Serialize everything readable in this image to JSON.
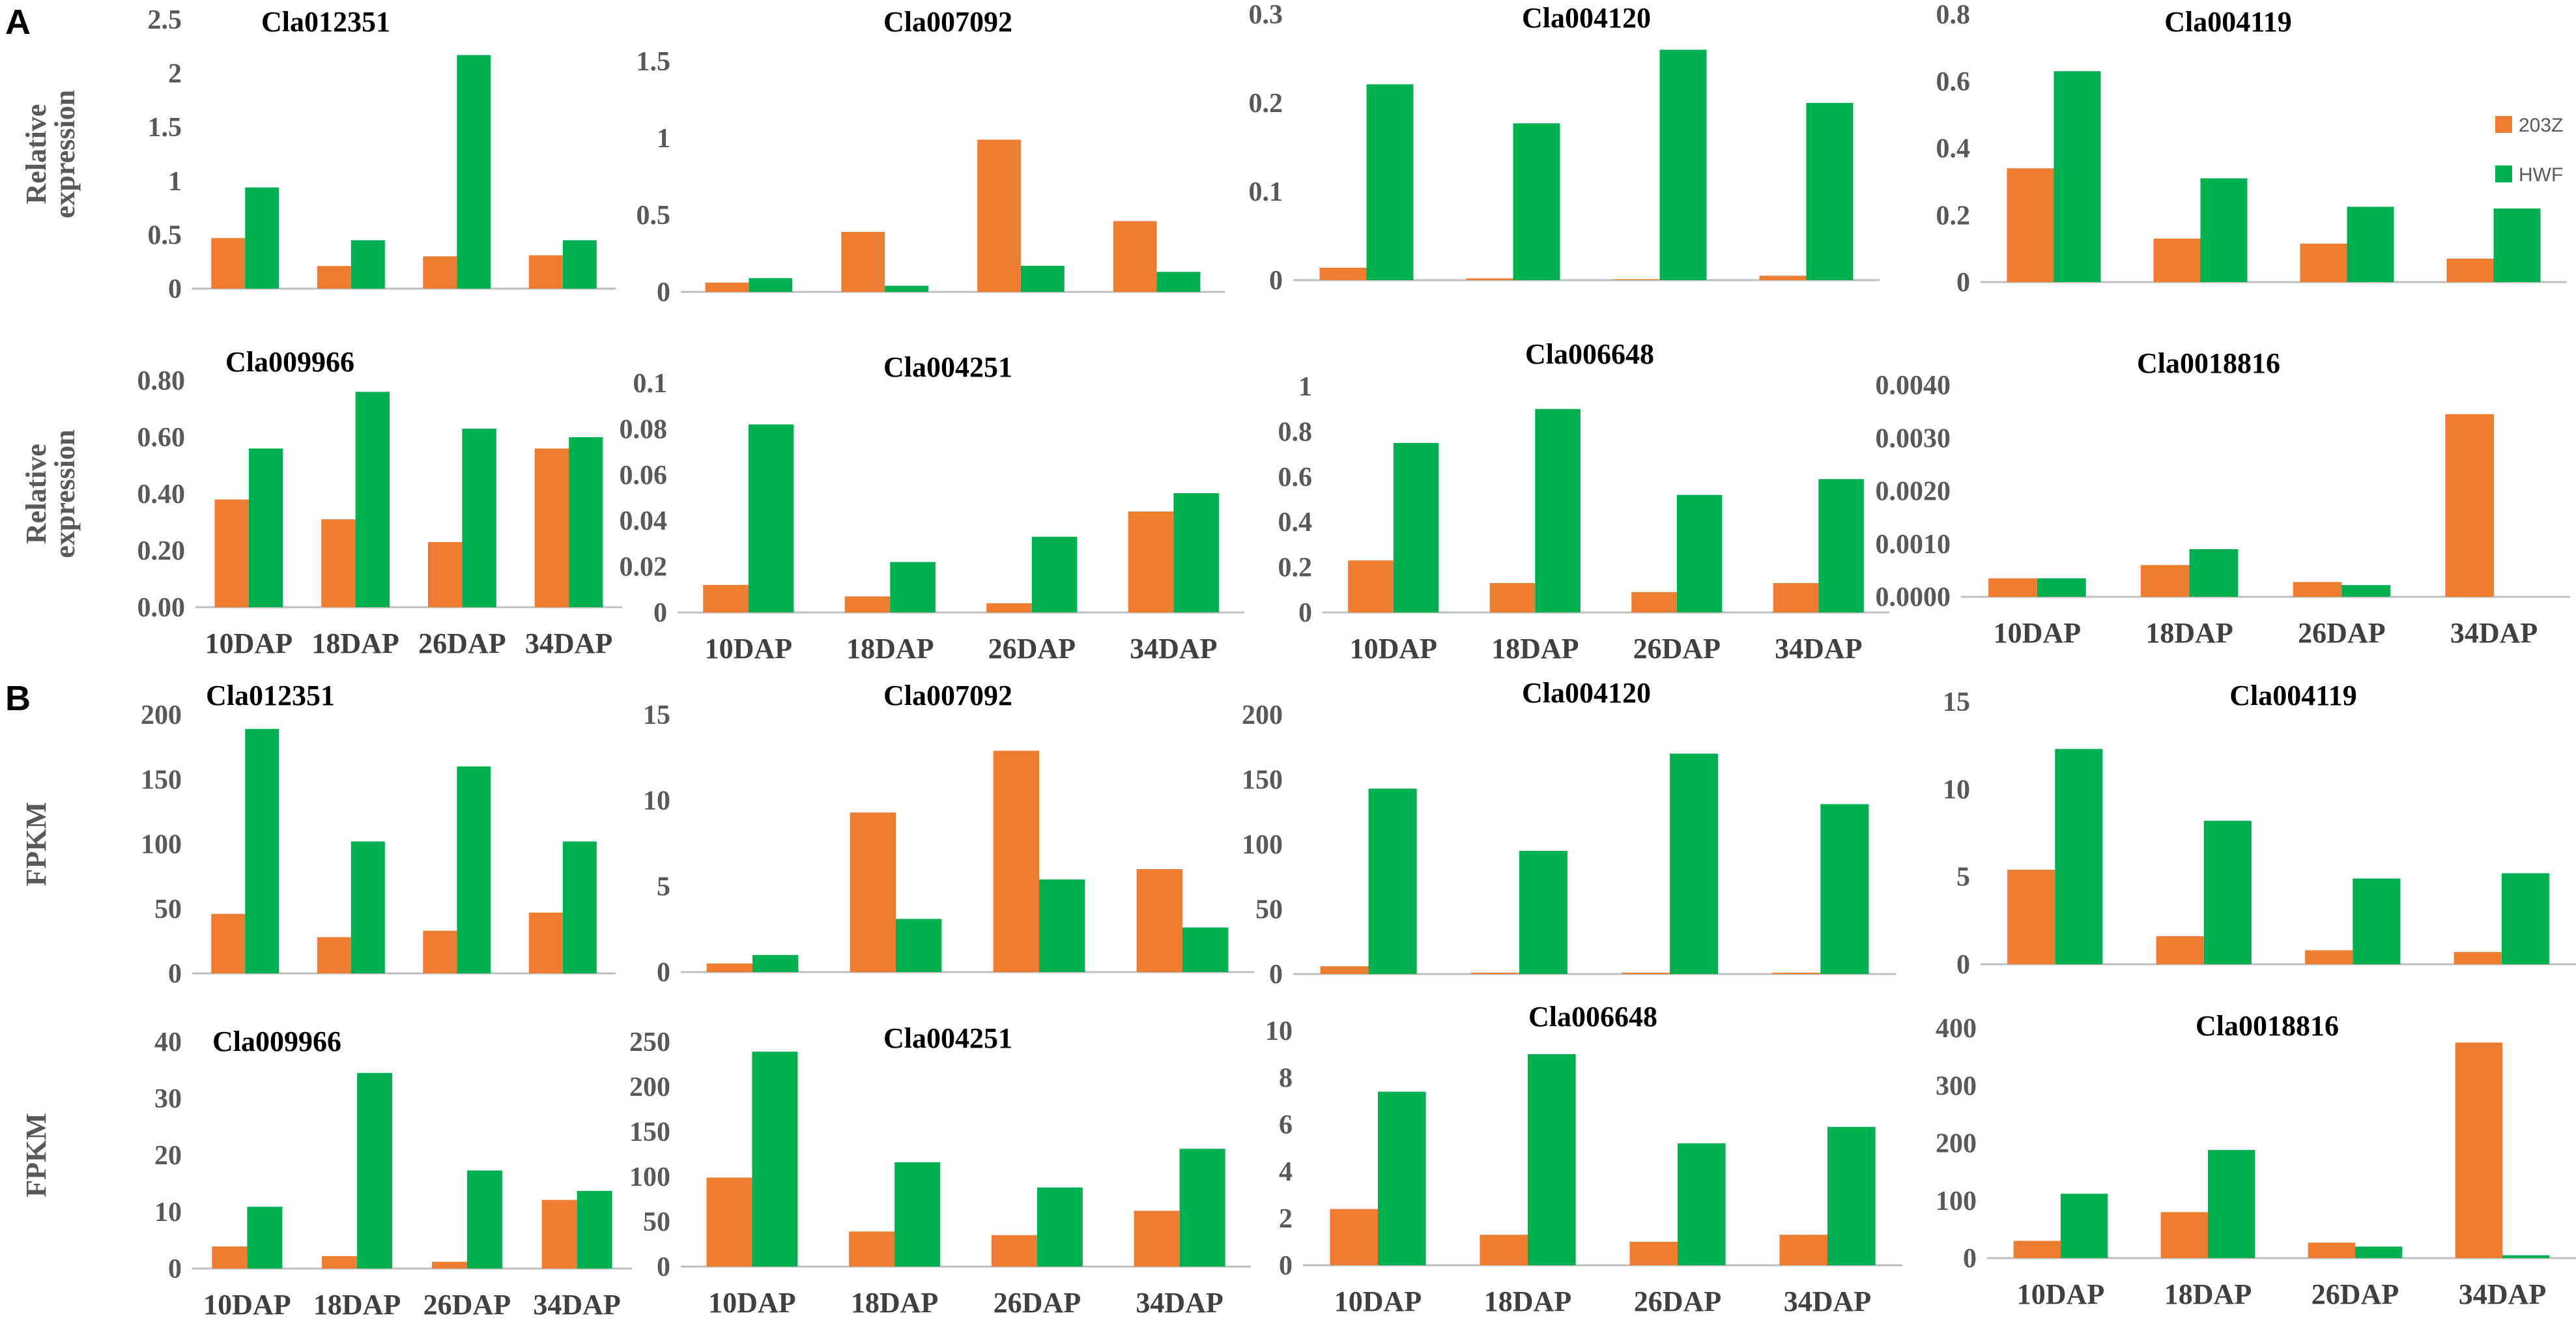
{
  "colors": {
    "s203Z": "#ED7D31",
    "HWF": "#00B050"
  },
  "panel_letters": [
    "A",
    "B"
  ],
  "legend": {
    "items": [
      "203Z",
      "HWF"
    ]
  },
  "chart_data": [
    {
      "type": "bar",
      "panel": "A",
      "title": "Cla012351",
      "ylabel": "Relative expression",
      "categories": [
        "10DAP",
        "18DAP",
        "26DAP",
        "34DAP"
      ],
      "show_xticks": false,
      "ylim": [
        0,
        2.5
      ],
      "yticks": [
        "0",
        "0.5",
        "1",
        "1.5",
        "2",
        "2.5"
      ],
      "series": [
        {
          "name": "203Z",
          "values": [
            0.47,
            0.21,
            0.3,
            0.31
          ]
        },
        {
          "name": "HWF",
          "values": [
            0.94,
            0.45,
            2.17,
            0.45
          ]
        }
      ]
    },
    {
      "type": "bar",
      "panel": "A",
      "title": "Cla007092",
      "ylabel": "",
      "categories": [
        "10DAP",
        "18DAP",
        "26DAP",
        "34DAP"
      ],
      "show_xticks": false,
      "ylim": [
        0,
        1.5
      ],
      "yticks": [
        "0",
        "0.5",
        "1",
        "1.5"
      ],
      "series": [
        {
          "name": "203Z",
          "values": [
            0.06,
            0.39,
            0.99,
            0.46
          ]
        },
        {
          "name": "HWF",
          "values": [
            0.09,
            0.04,
            0.17,
            0.13
          ]
        }
      ]
    },
    {
      "type": "bar",
      "panel": "A",
      "title": "Cla004120",
      "ylabel": "",
      "categories": [
        "10DAP",
        "18DAP",
        "26DAP",
        "34DAP"
      ],
      "show_xticks": false,
      "ylim": [
        0,
        0.3
      ],
      "yticks": [
        "0",
        "0.1",
        "0.2",
        "0.3"
      ],
      "series": [
        {
          "name": "203Z",
          "values": [
            0.014,
            0.002,
            0.001,
            0.005
          ]
        },
        {
          "name": "HWF",
          "values": [
            0.221,
            0.177,
            0.26,
            0.2
          ]
        }
      ]
    },
    {
      "type": "bar",
      "panel": "A",
      "title": "Cla004119",
      "ylabel": "",
      "categories": [
        "10DAP",
        "18DAP",
        "26DAP",
        "34DAP"
      ],
      "show_xticks": false,
      "ylim": [
        0,
        0.8
      ],
      "yticks": [
        "0",
        "0.2",
        "0.4",
        "0.6",
        "0.8"
      ],
      "series": [
        {
          "name": "203Z",
          "values": [
            0.34,
            0.13,
            0.115,
            0.07
          ]
        },
        {
          "name": "HWF",
          "values": [
            0.63,
            0.31,
            0.225,
            0.22
          ]
        }
      ]
    },
    {
      "type": "bar",
      "panel": "A",
      "title": "Cla009966",
      "ylabel": "Relative expression",
      "categories": [
        "10DAP",
        "18DAP",
        "26DAP",
        "34DAP"
      ],
      "show_xticks": true,
      "ylim": [
        0,
        0.8
      ],
      "yticks": [
        "0.00",
        "0.20",
        "0.40",
        "0.60",
        "0.80"
      ],
      "series": [
        {
          "name": "203Z",
          "values": [
            0.38,
            0.31,
            0.23,
            0.56
          ]
        },
        {
          "name": "HWF",
          "values": [
            0.56,
            0.76,
            0.63,
            0.6
          ]
        }
      ]
    },
    {
      "type": "bar",
      "panel": "A",
      "title": "Cla004251",
      "ylabel": "",
      "categories": [
        "10DAP",
        "18DAP",
        "26DAP",
        "34DAP"
      ],
      "show_xticks": true,
      "ylim": [
        0,
        0.1
      ],
      "yticks": [
        "0",
        "0.02",
        "0.04",
        "0.06",
        "0.08",
        "0.1"
      ],
      "series": [
        {
          "name": "203Z",
          "values": [
            0.012,
            0.007,
            0.004,
            0.044
          ]
        },
        {
          "name": "HWF",
          "values": [
            0.082,
            0.022,
            0.033,
            0.052
          ]
        }
      ]
    },
    {
      "type": "bar",
      "panel": "A",
      "title": "Cla006648",
      "ylabel": "",
      "categories": [
        "10DAP",
        "18DAP",
        "26DAP",
        "34DAP"
      ],
      "show_xticks": true,
      "ylim": [
        0,
        1
      ],
      "yticks": [
        "0",
        "0.2",
        "0.4",
        "0.6",
        "0.8",
        "1"
      ],
      "series": [
        {
          "name": "203Z",
          "values": [
            0.23,
            0.13,
            0.09,
            0.13
          ]
        },
        {
          "name": "HWF",
          "values": [
            0.75,
            0.9,
            0.52,
            0.59
          ]
        }
      ]
    },
    {
      "type": "bar",
      "panel": "A",
      "title": "Cla0018816",
      "ylabel": "",
      "categories": [
        "10DAP",
        "18DAP",
        "26DAP",
        "34DAP"
      ],
      "show_xticks": true,
      "ylim": [
        0,
        0.004
      ],
      "yticks": [
        "0.0000",
        "0.0010",
        "0.0020",
        "0.0030",
        "0.0040"
      ],
      "series": [
        {
          "name": "203Z",
          "values": [
            0.00035,
            0.0006,
            0.00028,
            0.00345
          ]
        },
        {
          "name": "HWF",
          "values": [
            0.00035,
            0.0009,
            0.00022,
            0.0
          ]
        }
      ]
    },
    {
      "type": "bar",
      "panel": "B",
      "title": "Cla012351",
      "ylabel": "FPKM",
      "categories": [
        "10DAP",
        "18DAP",
        "26DAP",
        "34DAP"
      ],
      "show_xticks": false,
      "ylim": [
        0,
        200
      ],
      "yticks": [
        "0",
        "50",
        "100",
        "150",
        "200"
      ],
      "series": [
        {
          "name": "203Z",
          "values": [
            46,
            28,
            33,
            47
          ]
        },
        {
          "name": "HWF",
          "values": [
            189,
            102,
            160,
            102
          ]
        }
      ]
    },
    {
      "type": "bar",
      "panel": "B",
      "title": "Cla007092",
      "ylabel": "",
      "categories": [
        "10DAP",
        "18DAP",
        "26DAP",
        "34DAP"
      ],
      "show_xticks": false,
      "ylim": [
        0,
        15
      ],
      "yticks": [
        "0",
        "5",
        "10",
        "15"
      ],
      "series": [
        {
          "name": "203Z",
          "values": [
            0.5,
            9.3,
            12.9,
            6.0
          ]
        },
        {
          "name": "HWF",
          "values": [
            1.0,
            3.1,
            5.4,
            2.6
          ]
        }
      ]
    },
    {
      "type": "bar",
      "panel": "B",
      "title": "Cla004120",
      "ylabel": "",
      "categories": [
        "10DAP",
        "18DAP",
        "26DAP",
        "34DAP"
      ],
      "show_xticks": false,
      "ylim": [
        0,
        200
      ],
      "yticks": [
        "0",
        "50",
        "100",
        "150",
        "200"
      ],
      "series": [
        {
          "name": "203Z",
          "values": [
            6,
            1,
            1,
            1
          ]
        },
        {
          "name": "HWF",
          "values": [
            143,
            95,
            170,
            131
          ]
        }
      ]
    },
    {
      "type": "bar",
      "panel": "B",
      "title": "Cla004119",
      "ylabel": "",
      "categories": [
        "10DAP",
        "18DAP",
        "26DAP",
        "34DAP"
      ],
      "show_xticks": false,
      "ylim": [
        0,
        15
      ],
      "yticks": [
        "0",
        "5",
        "10",
        "15"
      ],
      "series": [
        {
          "name": "203Z",
          "values": [
            5.4,
            1.6,
            0.8,
            0.7
          ]
        },
        {
          "name": "HWF",
          "values": [
            12.3,
            8.2,
            4.9,
            5.2
          ]
        }
      ]
    },
    {
      "type": "bar",
      "panel": "B",
      "title": "Cla009966",
      "ylabel": "FPKM",
      "categories": [
        "10DAP",
        "18DAP",
        "26DAP",
        "34DAP"
      ],
      "show_xticks": true,
      "ylim": [
        0,
        40
      ],
      "yticks": [
        "0",
        "10",
        "20",
        "30",
        "40"
      ],
      "series": [
        {
          "name": "203Z",
          "values": [
            3.9,
            2.2,
            1.2,
            12.1
          ]
        },
        {
          "name": "HWF",
          "values": [
            10.9,
            34.5,
            17.3,
            13.7
          ]
        }
      ]
    },
    {
      "type": "bar",
      "panel": "B",
      "title": "Cla004251",
      "ylabel": "",
      "categories": [
        "10DAP",
        "18DAP",
        "26DAP",
        "34DAP"
      ],
      "show_xticks": true,
      "ylim": [
        0,
        250
      ],
      "yticks": [
        "0",
        "50",
        "100",
        "150",
        "200",
        "250"
      ],
      "series": [
        {
          "name": "203Z",
          "values": [
            99,
            39,
            35,
            62
          ]
        },
        {
          "name": "HWF",
          "values": [
            239,
            116,
            88,
            131
          ]
        }
      ]
    },
    {
      "type": "bar",
      "panel": "B",
      "title": "Cla006648",
      "ylabel": "",
      "categories": [
        "10DAP",
        "18DAP",
        "26DAP",
        "34DAP"
      ],
      "show_xticks": true,
      "ylim": [
        0,
        10
      ],
      "yticks": [
        "0",
        "2",
        "4",
        "6",
        "8",
        "10"
      ],
      "series": [
        {
          "name": "203Z",
          "values": [
            2.4,
            1.3,
            1.0,
            1.3
          ]
        },
        {
          "name": "HWF",
          "values": [
            7.4,
            9.0,
            5.2,
            5.9
          ]
        }
      ]
    },
    {
      "type": "bar",
      "panel": "B",
      "title": "Cla0018816",
      "ylabel": "",
      "categories": [
        "10DAP",
        "18DAP",
        "26DAP",
        "34DAP"
      ],
      "show_xticks": true,
      "ylim": [
        0,
        400
      ],
      "yticks": [
        "0",
        "100",
        "200",
        "300",
        "400"
      ],
      "series": [
        {
          "name": "203Z",
          "values": [
            30,
            80,
            27,
            375
          ]
        },
        {
          "name": "HWF",
          "values": [
            112,
            188,
            20,
            5
          ]
        }
      ]
    }
  ]
}
